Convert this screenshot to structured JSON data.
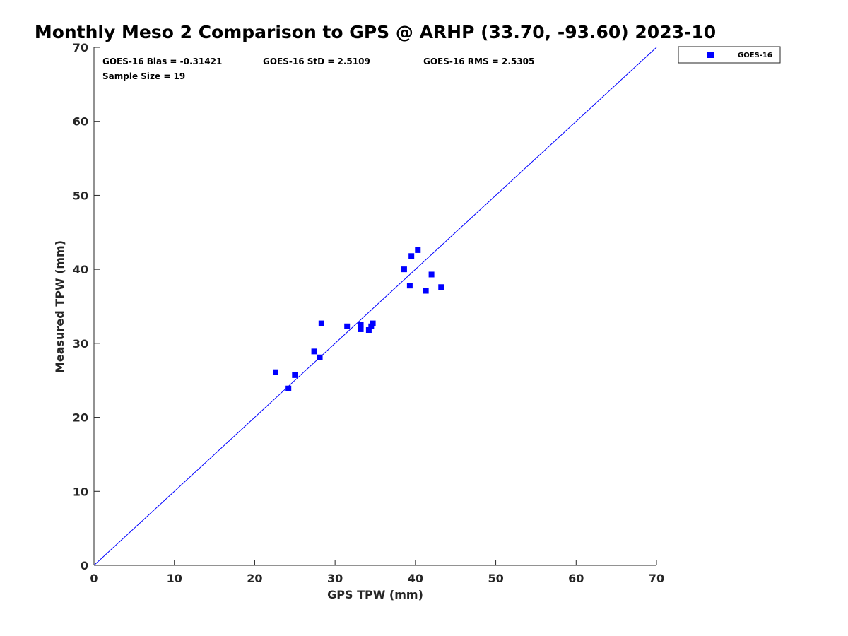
{
  "chart_data": {
    "type": "scatter",
    "title": "Monthly Meso 2 Comparison to GPS @ ARHP (33.70, -93.60) 2023-10",
    "xlabel": "GPS TPW (mm)",
    "ylabel": "Measured TPW (mm)",
    "xlim": [
      0,
      70
    ],
    "ylim": [
      0,
      70
    ],
    "xticks": [
      "0",
      "10",
      "20",
      "30",
      "40",
      "50",
      "60",
      "70"
    ],
    "yticks": [
      "0",
      "10",
      "20",
      "30",
      "40",
      "50",
      "60",
      "70"
    ],
    "grid": false,
    "legend_position": "outside-top-right",
    "reference_line": {
      "type": "one-to-one",
      "color": "#0000ff"
    },
    "series": [
      {
        "name": "GOES-16",
        "marker": "square",
        "color": "#0000ff",
        "points": [
          [
            22.6,
            26.1
          ],
          [
            24.2,
            23.9
          ],
          [
            25.0,
            25.7
          ],
          [
            27.4,
            28.9
          ],
          [
            28.1,
            28.1
          ],
          [
            28.3,
            32.7
          ],
          [
            31.5,
            32.3
          ],
          [
            33.2,
            32.5
          ],
          [
            33.2,
            31.9
          ],
          [
            34.2,
            31.8
          ],
          [
            34.5,
            32.3
          ],
          [
            34.7,
            32.7
          ],
          [
            38.6,
            40.0
          ],
          [
            39.3,
            37.8
          ],
          [
            39.5,
            41.8
          ],
          [
            40.3,
            42.6
          ],
          [
            41.3,
            37.1
          ],
          [
            42.0,
            39.3
          ],
          [
            43.2,
            37.6
          ]
        ]
      }
    ],
    "stats": {
      "bias": "GOES-16 Bias = -0.31421",
      "std": "GOES-16 StD = 2.5109",
      "rms": "GOES-16 RMS = 2.5305",
      "sample_size": "Sample Size = 19"
    }
  }
}
